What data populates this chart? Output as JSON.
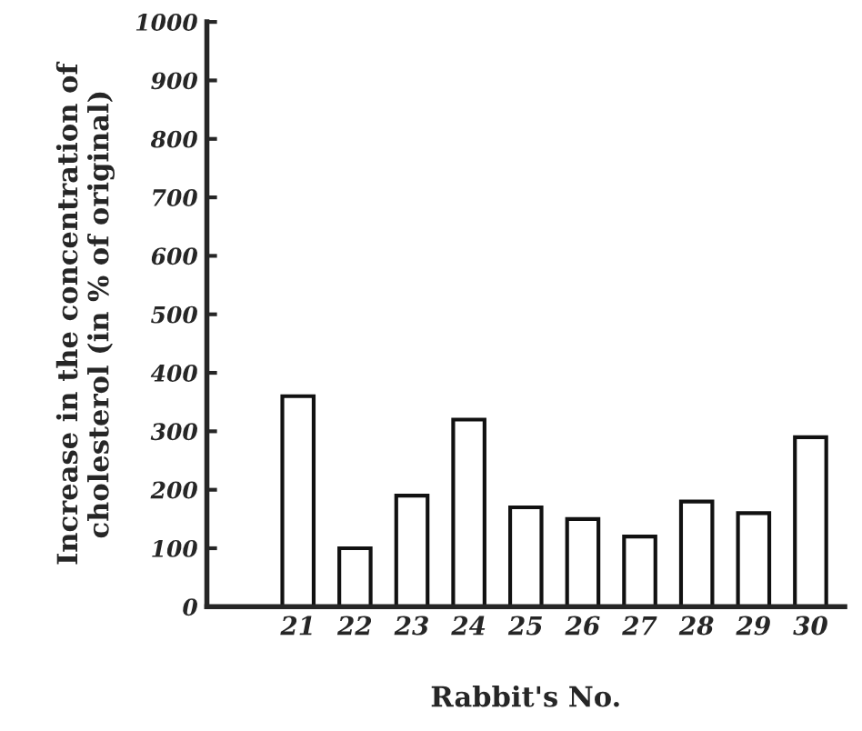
{
  "chart_data": {
    "type": "bar",
    "xlabel": "Rabbit's No.",
    "ylabel": "Increase in the concentration of\ncholesterol (in % of original)",
    "categories": [
      "21",
      "22",
      "23",
      "24",
      "25",
      "26",
      "27",
      "28",
      "29",
      "30"
    ],
    "values": [
      360,
      100,
      190,
      320,
      170,
      150,
      120,
      180,
      160,
      290
    ],
    "color": "#ffffff",
    "ylim": [
      0,
      1000
    ],
    "yticks": [
      0,
      100,
      200,
      300,
      400,
      500,
      600,
      700,
      800,
      900,
      1000
    ],
    "grid": false,
    "legend": false
  }
}
